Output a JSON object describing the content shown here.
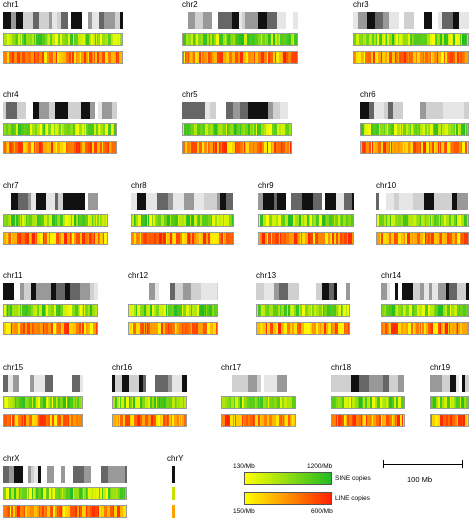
{
  "chromosomes": [
    {
      "label": "chr1"
    },
    {
      "label": "chr2"
    },
    {
      "label": "chr3"
    },
    {
      "label": "chr4"
    },
    {
      "label": "chr5"
    },
    {
      "label": "chr6"
    },
    {
      "label": "chr7"
    },
    {
      "label": "chr8"
    },
    {
      "label": "chr9"
    },
    {
      "label": "chr10"
    },
    {
      "label": "chr11"
    },
    {
      "label": "chr12"
    },
    {
      "label": "chr13"
    },
    {
      "label": "chr14"
    },
    {
      "label": "chr15"
    },
    {
      "label": "chr16"
    },
    {
      "label": "chr17"
    },
    {
      "label": "chr18"
    },
    {
      "label": "chr19"
    },
    {
      "label": "chrX"
    },
    {
      "label": "chrY"
    }
  ],
  "legend": {
    "sine": {
      "min": "130/Mb",
      "max": "1200/Mb",
      "name": "SINE copies",
      "colors": [
        "#ffff00",
        "#22bb22"
      ]
    },
    "line": {
      "min": "150/Mb",
      "max": "600/Mb",
      "name": "LINE copies",
      "colors": [
        "#ffff00",
        "#ff2200"
      ]
    }
  },
  "scale_bar": {
    "label": "100 Mb"
  },
  "colors": {
    "band_black": "#111111",
    "band_dark": "#666666",
    "band_mid": "#999999",
    "band_light": "#d0d0d0",
    "band_pale": "#e6e6e6"
  }
}
